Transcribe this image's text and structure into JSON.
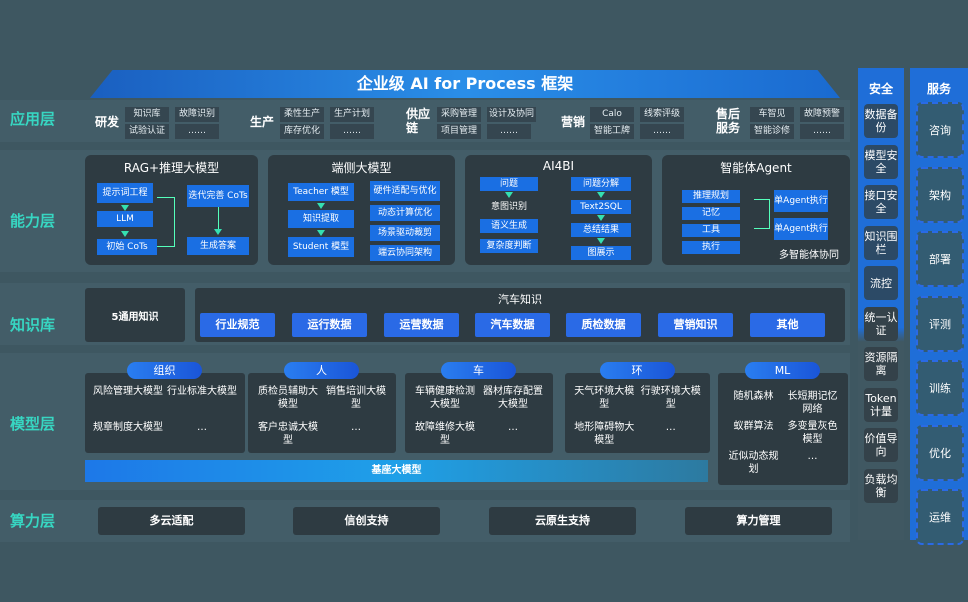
{
  "title": "企业级 AI for Process 框架",
  "layers": {
    "app": "应用层",
    "capability": "能力层",
    "knowledge": "知识库",
    "model": "模型层",
    "compute": "算力层"
  },
  "app_groups": [
    {
      "label": "研发",
      "items": [
        "知识库",
        "试验认证",
        "故障识别",
        "……"
      ]
    },
    {
      "label": "生产",
      "items": [
        "柔性生产",
        "库存优化",
        "生产计划",
        "……"
      ]
    },
    {
      "label": "供应链",
      "items": [
        "采购管理",
        "项目管理",
        "设计及协同",
        "……"
      ]
    },
    {
      "label": "营销",
      "items": [
        "Calo",
        "智能工牌",
        "线索评级",
        "……"
      ]
    },
    {
      "label": "售后服务",
      "items": [
        "车智见",
        "智能诊修",
        "故障预警",
        "……"
      ]
    }
  ],
  "capabilities": {
    "rag": {
      "title": "RAG+推理大模型",
      "left": [
        "提示词工程",
        "LLM",
        "初始 CoTs"
      ],
      "right": [
        "迭代完善 CoTs",
        "生成答案"
      ]
    },
    "edge": {
      "title": "端侧大模型",
      "left": [
        "Teacher 模型",
        "知识提取",
        "Student 模型"
      ],
      "right": [
        "硬件适配与优化",
        "动态计算优化",
        "场景驱动裁剪",
        "端云协同架构"
      ]
    },
    "ai4bi": {
      "title": "AI4BI",
      "left": [
        "问题",
        "意图识别",
        "语义生成",
        "复杂度判断"
      ],
      "right": [
        "问题分解",
        "Text2SQL",
        "总结结果",
        "图展示"
      ]
    },
    "agent": {
      "title": "智能体Agent",
      "left": [
        "推理规划",
        "记忆",
        "工具",
        "执行"
      ],
      "right": [
        "单Agent执行",
        "单Agent执行"
      ],
      "footer": "多智能体协同"
    }
  },
  "knowledge": {
    "general": "5通用知识",
    "auto_title": "汽车知识",
    "items": [
      "行业规范",
      "运行数据",
      "运营数据",
      "汽车数据",
      "质检数据",
      "营销知识",
      "其他"
    ]
  },
  "models": [
    {
      "pill": "组织",
      "items": [
        "风险管理大模型",
        "行业标准大模型",
        "规章制度大模型",
        "…"
      ]
    },
    {
      "pill": "人",
      "items": [
        "质检员辅助大模型",
        "销售培训大模型",
        "客户忠诚大模型",
        "…"
      ]
    },
    {
      "pill": "车",
      "items": [
        "车辆健康检测大模型",
        "器材库存配置大模型",
        "故障维修大模型",
        "…"
      ]
    },
    {
      "pill": "环",
      "items": [
        "天气环境大模型",
        "行驶环境大模型",
        "地形障碍物大模型",
        "…"
      ]
    },
    {
      "pill": "ML",
      "items": [
        "随机森林",
        "长短期记忆网络",
        "蚁群算法",
        "多变量灰色模型",
        "近似动态规划",
        "…"
      ]
    }
  ],
  "base_model": "基座大模型",
  "compute": [
    "多云适配",
    "信创支持",
    "云原生支持",
    "算力管理"
  ],
  "security": {
    "title": "安全",
    "items": [
      "数据备份",
      "模型安全",
      "接口安全",
      "知识围栏",
      "流控",
      "统一认证",
      "资源隔离",
      "Token计量",
      "价值导向",
      "负载均衡"
    ]
  },
  "service": {
    "title": "服务",
    "items": [
      "咨询",
      "架构",
      "部署",
      "评测",
      "训练",
      "优化",
      "运维"
    ]
  },
  "colors": {
    "background": "#3e5761",
    "layer_label": "#37d6c2",
    "accent_blue": "#1a6fe3",
    "card": "#2e3b42"
  }
}
